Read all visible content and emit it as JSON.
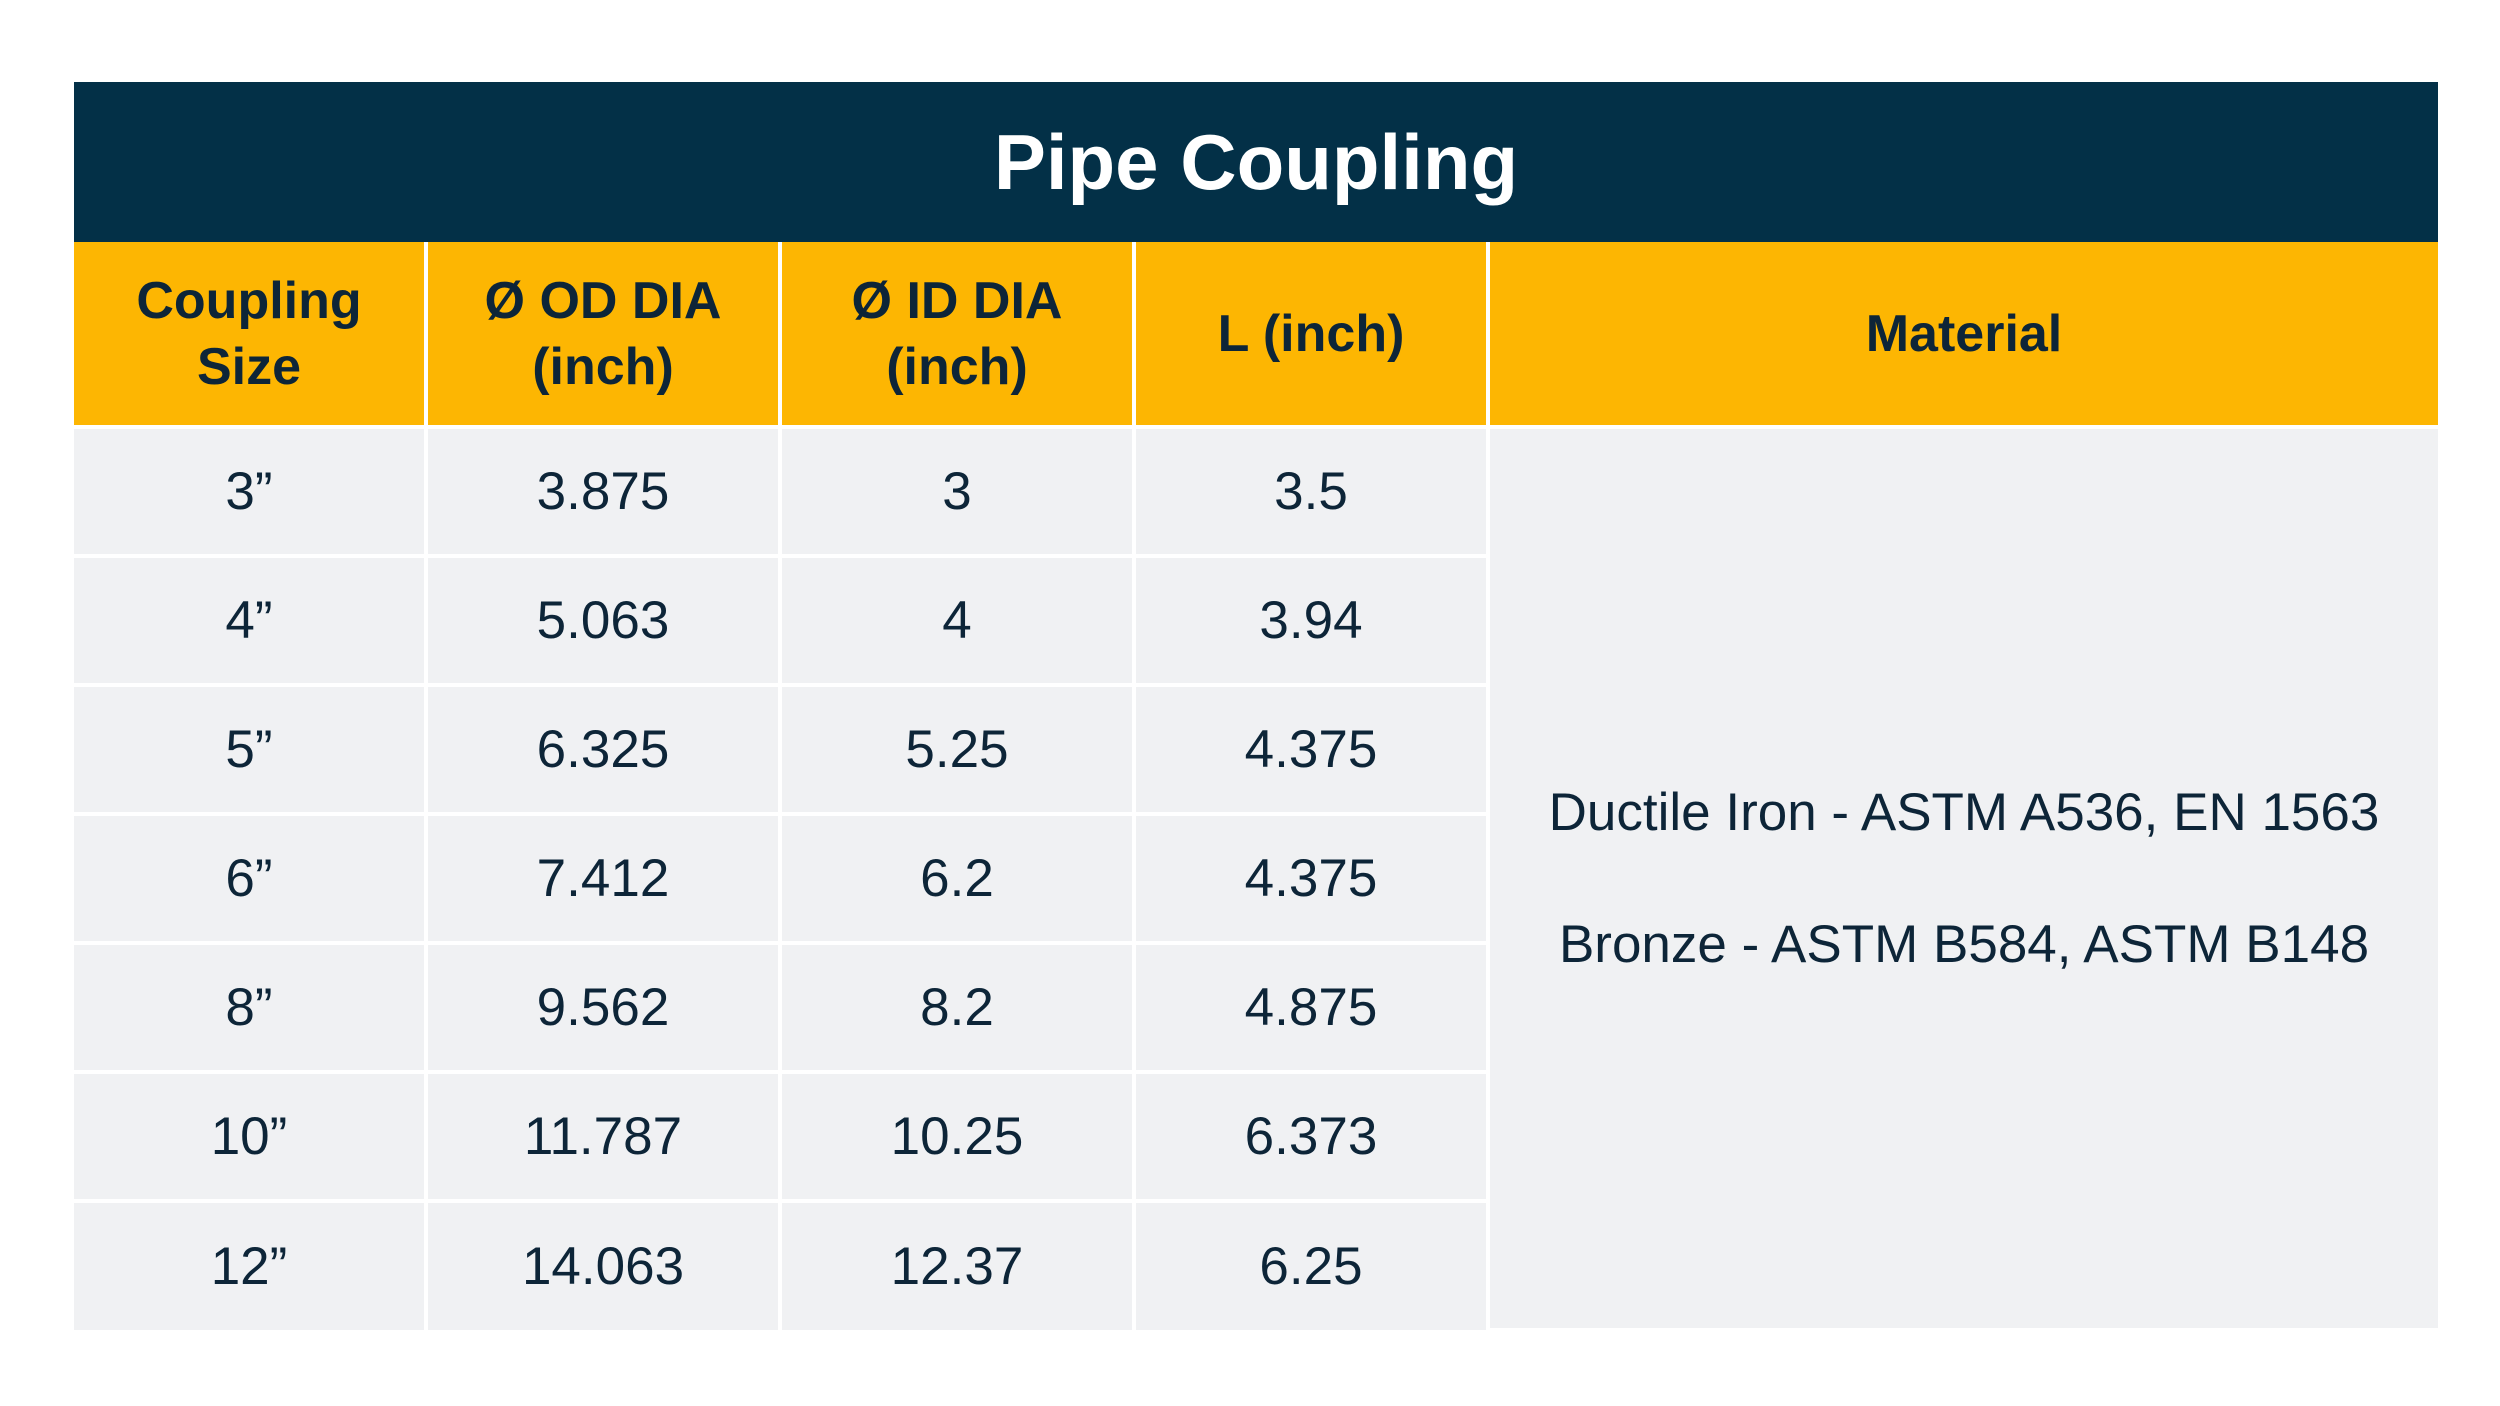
{
  "table": {
    "title": "Pipe Coupling",
    "headers": [
      {
        "line1": "Coupling",
        "line2": "Size"
      },
      {
        "line1": "Ø OD DIA",
        "line2": "(inch)"
      },
      {
        "line1": "Ø ID DIA",
        "line2": "(inch)"
      },
      {
        "line1": "L (inch)",
        "line2": ""
      },
      {
        "line1": "Material",
        "line2": ""
      }
    ],
    "rows": [
      [
        "3”",
        "3.875",
        "3",
        "3.5"
      ],
      [
        "4”",
        "5.063",
        "4",
        "3.94"
      ],
      [
        "5”",
        "6.325",
        "5.25",
        "4.375"
      ],
      [
        "6”",
        "7.412",
        "6.2",
        "4.375"
      ],
      [
        "8”",
        "9.562",
        "8.2",
        "4.875"
      ],
      [
        "10”",
        "11.787",
        "10.25",
        "6.373"
      ],
      [
        "12”",
        "14.063",
        "12.37",
        "6.25"
      ]
    ],
    "material": {
      "line1": "Ductile Iron - ASTM A536, EN 1563",
      "line2": "Bronze - ASTM B584, ASTM B148"
    }
  },
  "colors": {
    "title_bg": "#033047",
    "header_bg": "#fdb602",
    "cell_bg": "#f0f1f3",
    "text": "#0d2538"
  }
}
